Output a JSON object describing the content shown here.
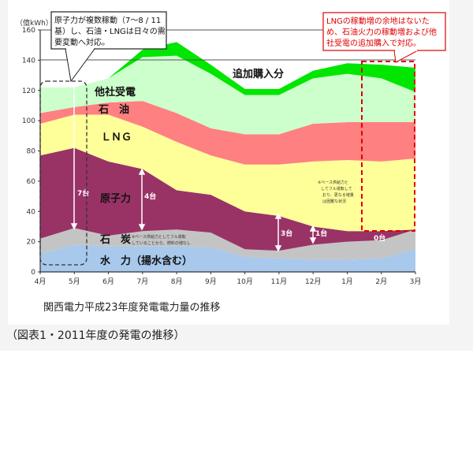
{
  "chart_data": {
    "type": "area",
    "stacked": true,
    "title": "関西電力平成23年度発電電力量の推移",
    "caption": "（図表1・2011年度の発電の推移）",
    "ylabel": "（億kWh）",
    "xlabel": "",
    "ylim": [
      0,
      160
    ],
    "yticks": [
      "0",
      "20",
      "40",
      "60",
      "80",
      "100",
      "120",
      "140",
      "160"
    ],
    "categories": [
      "4月",
      "5月",
      "6月",
      "7月",
      "8月",
      "9月",
      "10月",
      "11月",
      "12月",
      "1月",
      "2月",
      "3月"
    ],
    "series": [
      {
        "name": "水　力（揚水含む）",
        "color": "#a8c8ec",
        "values": [
          12,
          18,
          17,
          17,
          17,
          16,
          10,
          9,
          8,
          8,
          9,
          15
        ]
      },
      {
        "name": "石　炭",
        "color": "#c4c4c4",
        "values": [
          10,
          11,
          7,
          10,
          11,
          10,
          5,
          5,
          10,
          12,
          12,
          13
        ]
      },
      {
        "name": "原子力",
        "color": "#993366",
        "values": [
          55,
          53,
          49,
          41,
          26,
          25,
          25,
          23,
          12,
          7,
          6,
          0
        ]
      },
      {
        "name": "ＬＮＧ",
        "color": "#ffff99",
        "values": [
          21,
          22,
          31,
          28,
          32,
          26,
          31,
          34,
          43,
          47,
          46,
          47
        ]
      },
      {
        "name": "石　油",
        "color": "#ff8080",
        "values": [
          7,
          5,
          8,
          17,
          19,
          18,
          20,
          20,
          25,
          25,
          26,
          24
        ]
      },
      {
        "name": "他社受電",
        "color": "#ccffcc",
        "values": [
          17,
          13,
          16,
          29,
          38,
          36,
          26,
          26,
          30,
          32,
          29,
          20
        ]
      },
      {
        "name": "追加購入分",
        "color": "#00e600",
        "values": [
          0,
          0,
          0,
          5,
          9,
          6,
          4,
          4,
          5,
          7,
          9,
          16
        ]
      }
    ],
    "grid": "horizontal lines at 140 and 160",
    "annotations": {
      "callout_left": [
        "原子力が複数稼動（7～8 / 11",
        "基）し、石油・LNGは日々の需",
        "要変動へ対応。"
      ],
      "callout_right": [
        "LNGの稼動増の余地はないた",
        "め、石油火力の稼動増および他",
        "社受電の追加購入で対応。"
      ],
      "coal_note": [
        "※ベース供給力としてフル運転",
        "していることから、燃料の増なし"
      ],
      "lng_note": [
        "※ベース供給力と",
        "してフル運転して",
        "おり、更なる増量",
        "は困難な状況"
      ],
      "nuclear_units": [
        "7台",
        "4台",
        "3台",
        "1台",
        "0台"
      ]
    }
  }
}
